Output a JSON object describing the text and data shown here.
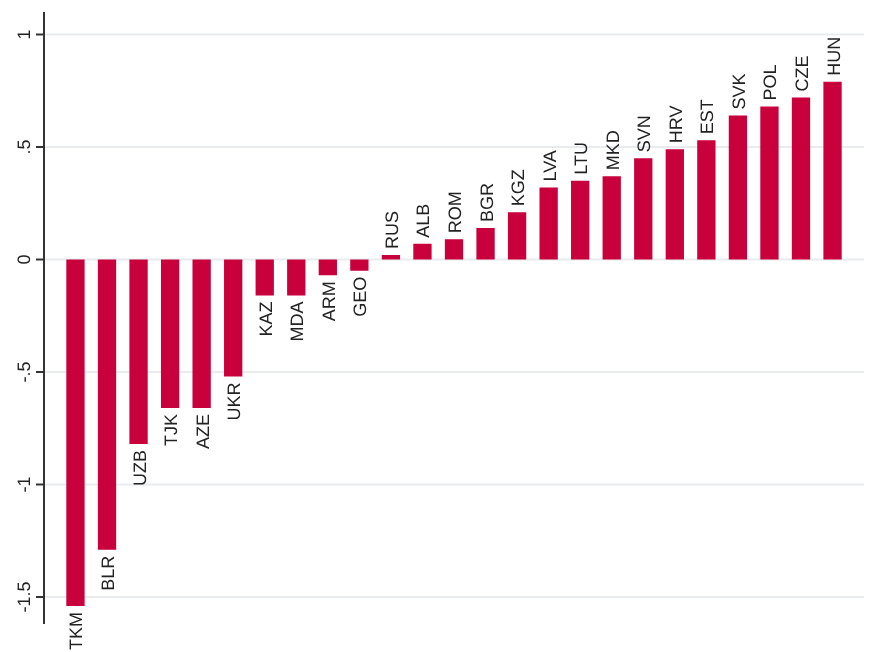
{
  "chart_data": {
    "type": "bar",
    "categories": [
      "TKM",
      "BLR",
      "UZB",
      "TJK",
      "AZE",
      "UKR",
      "KAZ",
      "MDA",
      "ARM",
      "GEO",
      "RUS",
      "ALB",
      "ROM",
      "BGR",
      "KGZ",
      "LVA",
      "LTU",
      "MKD",
      "SVN",
      "HRV",
      "EST",
      "SVK",
      "POL",
      "CZE",
      "HUN"
    ],
    "values": [
      -1.54,
      -1.29,
      -0.82,
      -0.66,
      -0.66,
      -0.52,
      -0.16,
      -0.16,
      -0.07,
      -0.05,
      0.02,
      0.07,
      0.09,
      0.14,
      0.21,
      0.32,
      0.35,
      0.37,
      0.45,
      0.49,
      0.53,
      0.64,
      0.68,
      0.72,
      0.79
    ],
    "color": "#c8003c",
    "ylim": [
      -1.62,
      1.1
    ],
    "yticks": [
      {
        "value": -1.5,
        "label": "-1.5"
      },
      {
        "value": -1,
        "label": "-1"
      },
      {
        "value": -0.5,
        "label": "-.5"
      },
      {
        "value": 0,
        "label": "0"
      },
      {
        "value": 0.5,
        "label": ".5"
      },
      {
        "value": 1,
        "label": "1"
      }
    ],
    "grid": "y"
  }
}
